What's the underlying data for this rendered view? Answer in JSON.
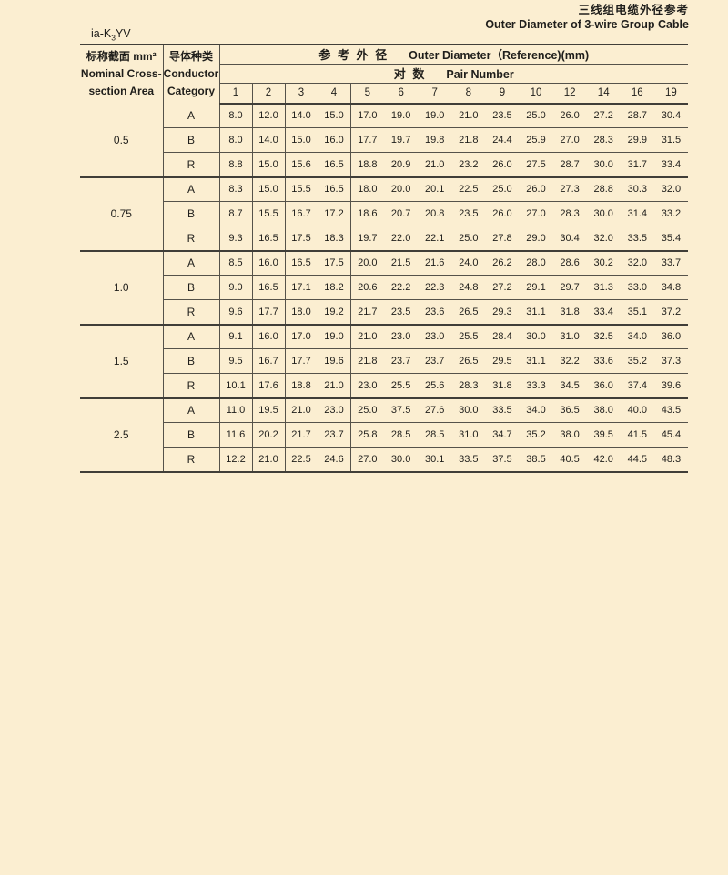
{
  "page": {
    "title_zh": "三线组电缆外径参考",
    "title_en": "Outer Diameter of 3-wire Group Cable",
    "model_prefix": "ia-K",
    "model_sub": "3",
    "model_suffix": "YV"
  },
  "table": {
    "col1_header": {
      "zh": "标称截面 mm²",
      "en1": "Nominal Cross-",
      "en2": "section Area"
    },
    "col2_header": {
      "zh": "导体种类",
      "en1": "Conductor",
      "en2": "Category"
    },
    "span_header": {
      "zh": "参 考 外 径",
      "en": "Outer Diameter（Reference)(mm)"
    },
    "pair_header": {
      "zh": "对 数",
      "en": "Pair Number"
    },
    "pair_numbers": [
      "1",
      "2",
      "3",
      "4",
      "5",
      "6",
      "7",
      "8",
      "9",
      "10",
      "12",
      "14",
      "16",
      "19"
    ],
    "groups": [
      {
        "area": "0.5",
        "rows": [
          {
            "category": "A",
            "values": [
              "8.0",
              "12.0",
              "14.0",
              "15.0",
              "17.0",
              "19.0",
              "19.0",
              "21.0",
              "23.5",
              "25.0",
              "26.0",
              "27.2",
              "28.7",
              "30.4"
            ]
          },
          {
            "category": "B",
            "values": [
              "8.0",
              "14.0",
              "15.0",
              "16.0",
              "17.7",
              "19.7",
              "19.8",
              "21.8",
              "24.4",
              "25.9",
              "27.0",
              "28.3",
              "29.9",
              "31.5"
            ]
          },
          {
            "category": "R",
            "values": [
              "8.8",
              "15.0",
              "15.6",
              "16.5",
              "18.8",
              "20.9",
              "21.0",
              "23.2",
              "26.0",
              "27.5",
              "28.7",
              "30.0",
              "31.7",
              "33.4"
            ]
          }
        ]
      },
      {
        "area": "0.75",
        "rows": [
          {
            "category": "A",
            "values": [
              "8.3",
              "15.0",
              "15.5",
              "16.5",
              "18.0",
              "20.0",
              "20.1",
              "22.5",
              "25.0",
              "26.0",
              "27.3",
              "28.8",
              "30.3",
              "32.0"
            ]
          },
          {
            "category": "B",
            "values": [
              "8.7",
              "15.5",
              "16.7",
              "17.2",
              "18.6",
              "20.7",
              "20.8",
              "23.5",
              "26.0",
              "27.0",
              "28.3",
              "30.0",
              "31.4",
              "33.2"
            ]
          },
          {
            "category": "R",
            "values": [
              "9.3",
              "16.5",
              "17.5",
              "18.3",
              "19.7",
              "22.0",
              "22.1",
              "25.0",
              "27.8",
              "29.0",
              "30.4",
              "32.0",
              "33.5",
              "35.4"
            ]
          }
        ]
      },
      {
        "area": "1.0",
        "rows": [
          {
            "category": "A",
            "values": [
              "8.5",
              "16.0",
              "16.5",
              "17.5",
              "20.0",
              "21.5",
              "21.6",
              "24.0",
              "26.2",
              "28.0",
              "28.6",
              "30.2",
              "32.0",
              "33.7"
            ]
          },
          {
            "category": "B",
            "values": [
              "9.0",
              "16.5",
              "17.1",
              "18.2",
              "20.6",
              "22.2",
              "22.3",
              "24.8",
              "27.2",
              "29.1",
              "29.7",
              "31.3",
              "33.0",
              "34.8"
            ]
          },
          {
            "category": "R",
            "values": [
              "9.6",
              "17.7",
              "18.0",
              "19.2",
              "21.7",
              "23.5",
              "23.6",
              "26.5",
              "29.3",
              "31.1",
              "31.8",
              "33.4",
              "35.1",
              "37.2"
            ]
          }
        ]
      },
      {
        "area": "1.5",
        "rows": [
          {
            "category": "A",
            "values": [
              "9.1",
              "16.0",
              "17.0",
              "19.0",
              "21.0",
              "23.0",
              "23.0",
              "25.5",
              "28.4",
              "30.0",
              "31.0",
              "32.5",
              "34.0",
              "36.0"
            ]
          },
          {
            "category": "B",
            "values": [
              "9.5",
              "16.7",
              "17.7",
              "19.6",
              "21.8",
              "23.7",
              "23.7",
              "26.5",
              "29.5",
              "31.1",
              "32.2",
              "33.6",
              "35.2",
              "37.3"
            ]
          },
          {
            "category": "R",
            "values": [
              "10.1",
              "17.6",
              "18.8",
              "21.0",
              "23.0",
              "25.5",
              "25.6",
              "28.3",
              "31.8",
              "33.3",
              "34.5",
              "36.0",
              "37.4",
              "39.6"
            ]
          }
        ]
      },
      {
        "area": "2.5",
        "rows": [
          {
            "category": "A",
            "values": [
              "11.0",
              "19.5",
              "21.0",
              "23.0",
              "25.0",
              "37.5",
              "27.6",
              "30.0",
              "33.5",
              "34.0",
              "36.5",
              "38.0",
              "40.0",
              "43.5"
            ]
          },
          {
            "category": "B",
            "values": [
              "11.6",
              "20.2",
              "21.7",
              "23.7",
              "25.8",
              "28.5",
              "28.5",
              "31.0",
              "34.7",
              "35.2",
              "38.0",
              "39.5",
              "41.5",
              "45.4"
            ]
          },
          {
            "category": "R",
            "values": [
              "12.2",
              "21.0",
              "22.5",
              "24.6",
              "27.0",
              "30.0",
              "30.1",
              "33.5",
              "37.5",
              "38.5",
              "40.5",
              "42.0",
              "44.5",
              "48.3"
            ]
          }
        ]
      }
    ]
  },
  "colors": {
    "background": "#fbeed1",
    "text": "#1f1e1b",
    "line_thin": "#55524a",
    "line_thick": "#403e38"
  }
}
